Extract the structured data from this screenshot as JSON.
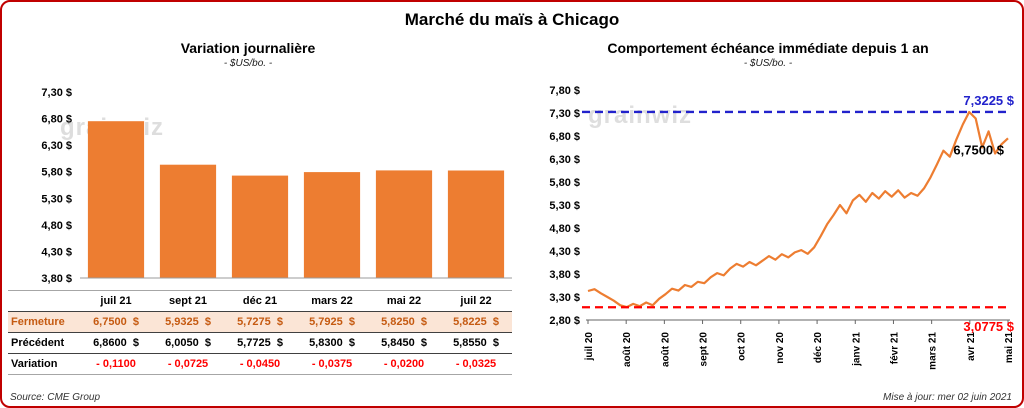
{
  "page": {
    "title": "Marché du maïs à Chicago",
    "source_note": "Source: CME Group",
    "update_note": "Mise à jour: mer 02 juin 2021",
    "watermark": "grainwiz"
  },
  "colors": {
    "frame_border": "#C00000",
    "fermeture_bg": "#FBE5D6",
    "fermeture_text": "#C55A11",
    "variation_text": "#FF0000",
    "bar_orange": "#ED7D31"
  },
  "table": {
    "corner": "",
    "columns": [
      "juil 21",
      "sept 21",
      "déc 21",
      "mars 22",
      "mai 22",
      "juil 22"
    ],
    "rows": [
      {
        "label": "Fermeture",
        "values": [
          "6,7500  $",
          "5,9325  $",
          "5,7275  $",
          "5,7925  $",
          "5,8250  $",
          "5,8225  $"
        ]
      },
      {
        "label": "Précédent",
        "values": [
          "6,8600  $",
          "6,0050  $",
          "5,7725  $",
          "5,8300  $",
          "5,8450  $",
          "5,8550  $"
        ]
      },
      {
        "label": "Variation",
        "values": [
          "- 0,1100",
          "- 0,0725",
          "- 0,0450",
          "- 0,0375",
          "- 0,0200",
          "- 0,0325"
        ]
      }
    ]
  },
  "chart_data": [
    {
      "type": "bar",
      "title": "Variation journalière",
      "subtitle": "- $US/bo. -",
      "categories": [
        "juil 21",
        "sept 21",
        "déc 21",
        "mars 22",
        "mai 22",
        "juil 22"
      ],
      "values": [
        6.75,
        5.9325,
        5.7275,
        5.7925,
        5.825,
        5.8225
      ],
      "ylim": [
        3.8,
        7.3
      ],
      "ytick_values": [
        7.3,
        6.8,
        6.3,
        5.8,
        5.3,
        4.8,
        4.3,
        3.8
      ],
      "ytick_labels": [
        "7,30 $",
        "6,80 $",
        "6,30 $",
        "5,80 $",
        "5,30 $",
        "4,80 $",
        "4,30 $",
        "3,80 $"
      ],
      "bar_color": "#ED7D31",
      "grid": false,
      "legend": "none"
    },
    {
      "type": "line",
      "title": "Comportement échéance immédiate depuis 1 an",
      "subtitle": "- $US/bo. -",
      "x_labels": [
        "juil 20",
        "août 20",
        "août 20",
        "sept 20",
        "oct 20",
        "nov 20",
        "déc 20",
        "janv 21",
        "févr 21",
        "mars 21",
        "avr 21",
        "mai 21"
      ],
      "values": [
        3.43,
        3.47,
        3.38,
        3.3,
        3.22,
        3.12,
        3.08,
        3.15,
        3.1,
        3.18,
        3.12,
        3.26,
        3.36,
        3.48,
        3.44,
        3.56,
        3.52,
        3.63,
        3.6,
        3.73,
        3.82,
        3.77,
        3.92,
        4.02,
        3.96,
        4.06,
        3.99,
        4.09,
        4.19,
        4.11,
        4.23,
        4.16,
        4.27,
        4.32,
        4.24,
        4.38,
        4.62,
        4.88,
        5.08,
        5.3,
        5.12,
        5.4,
        5.52,
        5.37,
        5.56,
        5.44,
        5.6,
        5.48,
        5.62,
        5.46,
        5.56,
        5.5,
        5.66,
        5.9,
        6.18,
        6.48,
        6.35,
        6.72,
        7.05,
        7.3225,
        7.18,
        6.55,
        6.9,
        6.42,
        6.62,
        6.75
      ],
      "ylim": [
        2.8,
        7.8
      ],
      "ytick_values": [
        7.8,
        7.3,
        6.8,
        6.3,
        5.8,
        5.3,
        4.8,
        4.3,
        3.8,
        3.3,
        2.8
      ],
      "ytick_labels": [
        "7,80 $",
        "7,30 $",
        "6,80 $",
        "6,30 $",
        "5,80 $",
        "5,30 $",
        "4,80 $",
        "4,30 $",
        "3,80 $",
        "3,30 $",
        "2,80 $"
      ],
      "line_color": "#ED7D31",
      "grid": false,
      "legend": "none",
      "annotations": {
        "high": {
          "value": 7.3225,
          "label": "7,3225 $",
          "color": "#2222CC"
        },
        "low": {
          "value": 3.0775,
          "label": "3,0775 $",
          "color": "#FF0000"
        },
        "current": {
          "value": 6.75,
          "label": "6,7500 $",
          "color": "#000000"
        }
      }
    }
  ]
}
